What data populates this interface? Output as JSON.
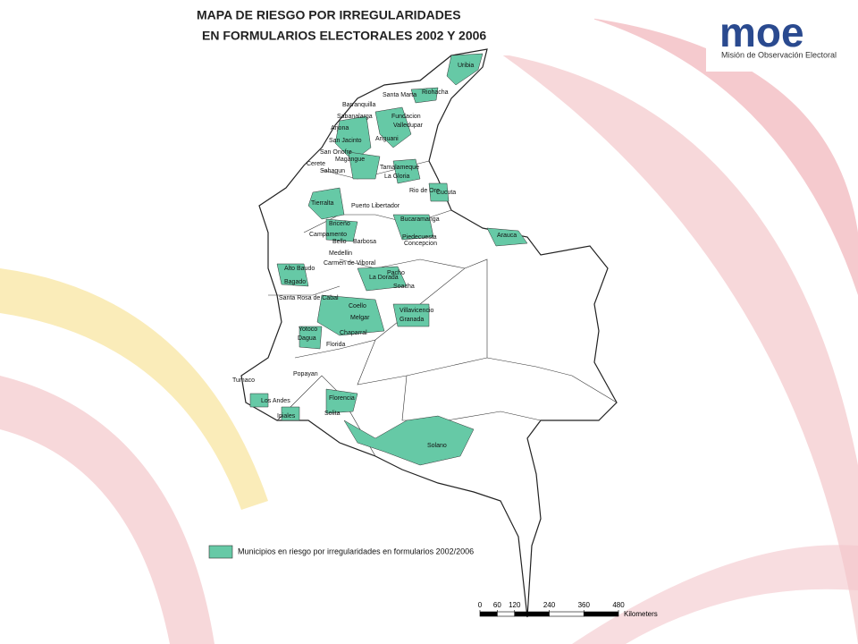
{
  "header": {
    "title_line1": "MAPA DE RIESGO POR IRREGULARIDADES",
    "title_line2": "EN FORMULARIOS ELECTORALES  2002 Y 2006"
  },
  "logo": {
    "wordmark": "moe",
    "name": "Misión de Observación Electoral"
  },
  "map": {
    "labels": [
      "Uribia",
      "Santa Marta",
      "Riohacha",
      "Barranquilla",
      "Fundacion",
      "Valledupar",
      "Sabanalarga",
      "Ariguani",
      "Arjona",
      "San Jacinto",
      "San Onofre",
      "Magangue",
      "Tamalameque",
      "Cerete",
      "Sahagun",
      "La Gloria",
      "Tierralta",
      "Puerto Libertador",
      "Rio de Oro",
      "Cucuta",
      "Arauca",
      "Bucaramanga",
      "Piedecuesta",
      "Concepcion",
      "Briceño",
      "Campamento",
      "Bello",
      "Barbosa",
      "Medellin",
      "Carmen de Viboral",
      "Alto Baudo",
      "Bagado",
      "La Dorada",
      "Pacho",
      "Soacha",
      "Santa Rosa de Cabal",
      "Coello",
      "Melgar",
      "Villavicencio",
      "Granada",
      "Yotoco",
      "Dagua",
      "Florida",
      "Chaparral",
      "Popayan",
      "Tumaco",
      "Los Andes",
      "Ipiales",
      "Florencia",
      "Solita",
      "Solano"
    ]
  },
  "legend": {
    "label": "Municipios en riesgo por irregularidades en formularios 2002/2006"
  },
  "scale_bar": {
    "ticks": [
      0,
      60,
      120,
      240,
      360,
      480
    ],
    "unit": "Kilometers"
  }
}
